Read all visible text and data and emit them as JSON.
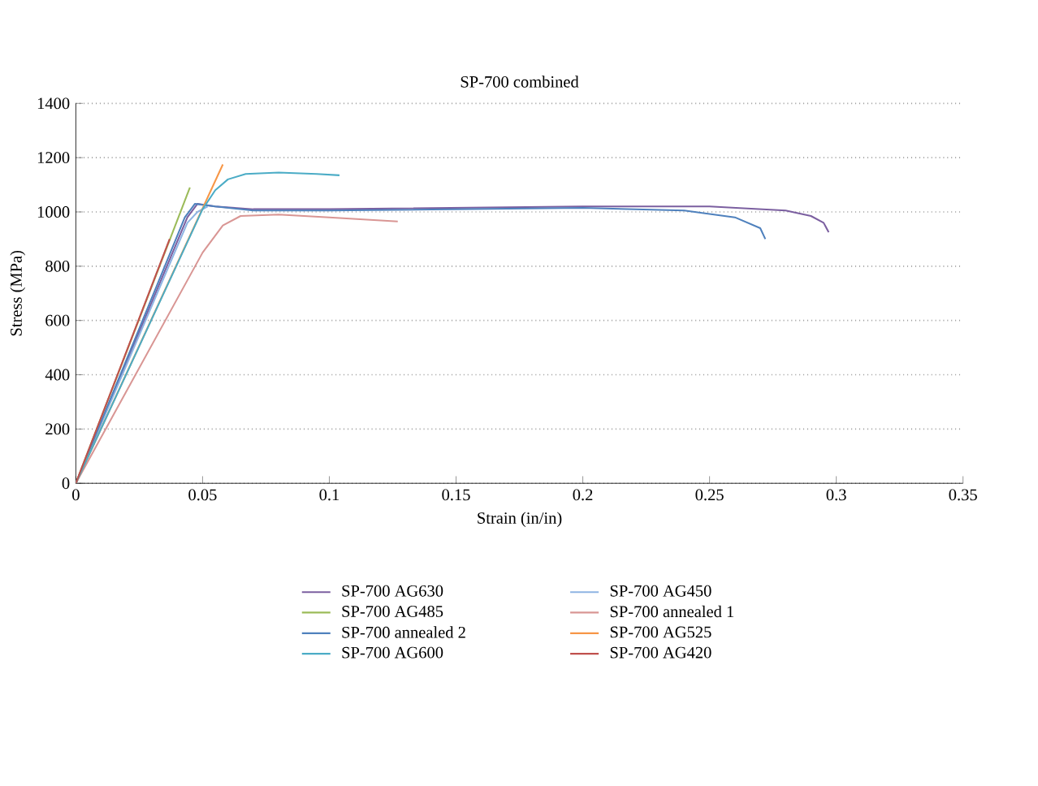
{
  "chart_data": {
    "type": "line",
    "title": "SP-700 combined",
    "xlabel": "Strain (in/in)",
    "ylabel": "Stress (MPa)",
    "xlim": [
      0,
      0.35
    ],
    "xticks": [
      0,
      0.05,
      0.1,
      0.15,
      0.2,
      0.25,
      0.3,
      0.35
    ],
    "ylim": [
      0,
      1400
    ],
    "yticks": [
      0,
      200,
      400,
      600,
      800,
      1000,
      1200,
      1400
    ],
    "grid": "y",
    "legend": "bottom",
    "line_style": "solid",
    "marker": "none",
    "series": [
      {
        "name": "SP-700 AG630",
        "color": "#7b5fa0",
        "x": [
          0,
          0.044,
          0.048,
          0.055,
          0.07,
          0.1,
          0.15,
          0.2,
          0.25,
          0.28,
          0.29,
          0.295,
          0.297
        ],
        "values": [
          0,
          980,
          1030,
          1020,
          1010,
          1010,
          1015,
          1020,
          1020,
          1005,
          985,
          960,
          925
        ]
      },
      {
        "name": "SP-700 AG450",
        "color": "#8eb4e3",
        "x": [
          0,
          0.044,
          0.048,
          0.052
        ],
        "values": [
          0,
          960,
          1000,
          1020
        ]
      },
      {
        "name": "SP-700 AG485",
        "color": "#9bbb59",
        "x": [
          0,
          0.045
        ],
        "values": [
          0,
          1090
        ]
      },
      {
        "name": "SP-700 annealed 1",
        "color": "#d99694",
        "x": [
          0,
          0.05,
          0.058,
          0.065,
          0.08,
          0.1,
          0.127
        ],
        "values": [
          0,
          850,
          950,
          985,
          990,
          980,
          965
        ]
      },
      {
        "name": "SP-700 annealed 2",
        "color": "#4f81bd",
        "x": [
          0,
          0.043,
          0.047,
          0.055,
          0.07,
          0.1,
          0.15,
          0.2,
          0.24,
          0.26,
          0.27,
          0.272
        ],
        "values": [
          0,
          980,
          1030,
          1020,
          1005,
          1005,
          1010,
          1015,
          1005,
          980,
          940,
          900
        ]
      },
      {
        "name": "SP-700 AG525",
        "color": "#f79646",
        "x": [
          0,
          0.058
        ],
        "values": [
          0,
          1175
        ]
      },
      {
        "name": "SP-700 AG600",
        "color": "#4bacc6",
        "x": [
          0,
          0.05,
          0.055,
          0.06,
          0.067,
          0.08,
          0.095,
          0.104
        ],
        "values": [
          0,
          1010,
          1080,
          1120,
          1140,
          1145,
          1140,
          1135
        ]
      },
      {
        "name": "SP-700 AG420",
        "color": "#c0504d",
        "x": [
          0,
          0.037
        ],
        "values": [
          0,
          900
        ]
      }
    ]
  }
}
